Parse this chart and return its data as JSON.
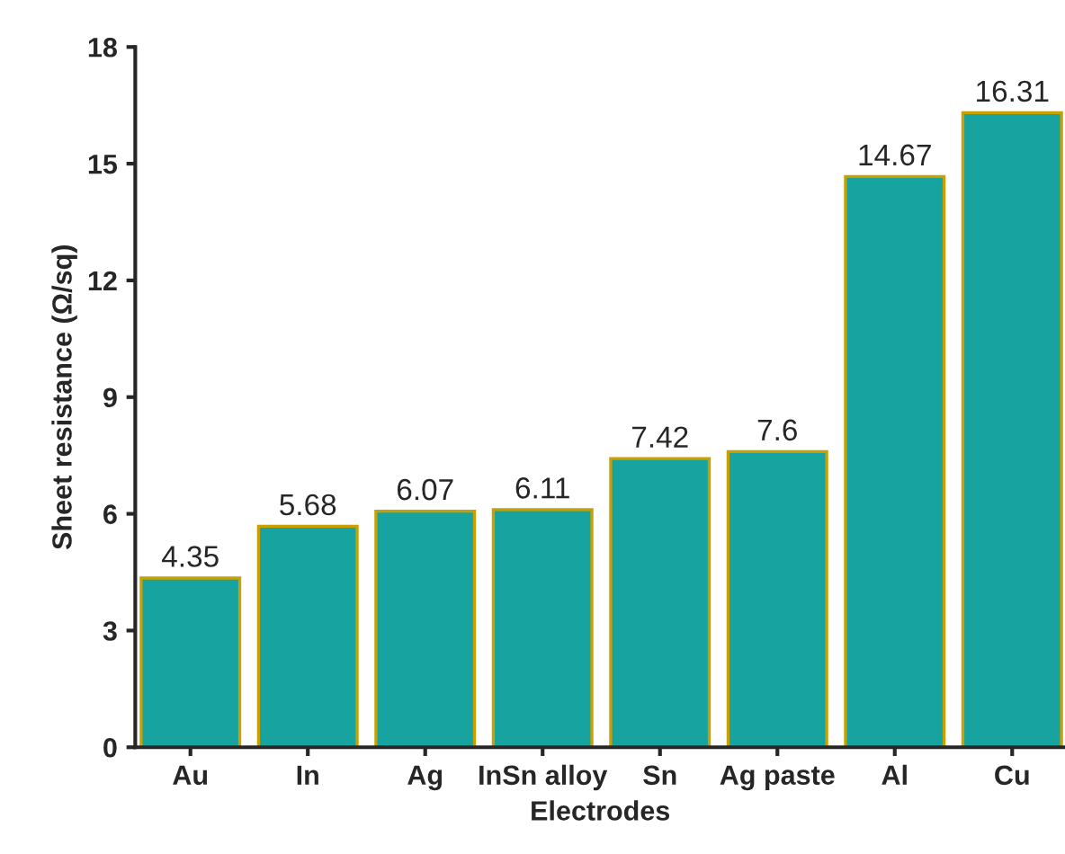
{
  "chart_data": {
    "type": "bar",
    "xlabel": "Electrodes",
    "ylabel": "Sheet resistance (Ω/sq)",
    "categories": [
      "Au",
      "In",
      "Ag",
      "InSn alloy",
      "Sn",
      "Ag paste",
      "Al",
      "Cu"
    ],
    "values": [
      4.35,
      5.68,
      6.07,
      6.11,
      7.42,
      7.6,
      14.67,
      16.31
    ],
    "color": "#17a3a0",
    "ylim": [
      0,
      18
    ],
    "yticks": [
      0,
      3,
      6,
      9,
      12,
      15,
      18
    ],
    "data_labels": true,
    "grid": false,
    "legend": false
  }
}
